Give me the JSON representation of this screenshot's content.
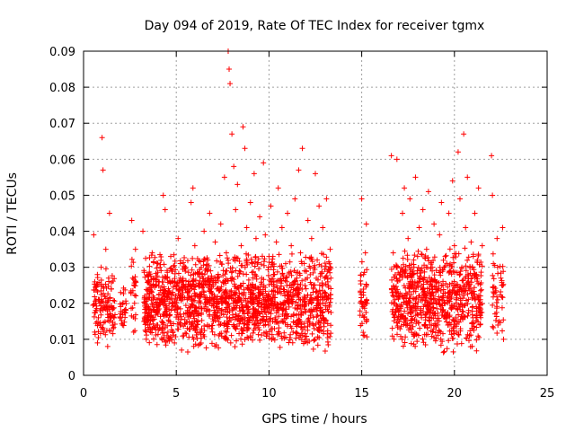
{
  "chart_data": {
    "type": "scatter",
    "title": "Day 094 of 2019, Rate Of TEC Index for receiver tgmx",
    "xlabel": "GPS time / hours",
    "ylabel": "ROTI / TECUs",
    "xlim": [
      0,
      25
    ],
    "ylim": [
      0,
      0.09
    ],
    "x_ticks": [
      0,
      5,
      10,
      15,
      20,
      25
    ],
    "x_tick_labels": [
      "0",
      "5",
      "10",
      "15",
      "20",
      "25"
    ],
    "y_ticks": [
      0,
      0.01,
      0.02,
      0.03,
      0.04,
      0.05,
      0.06,
      0.07,
      0.08,
      0.09
    ],
    "y_tick_labels": [
      "0",
      "0.01",
      "0.02",
      "0.03",
      "0.04",
      "0.05",
      "0.06",
      "0.07",
      "0.08",
      "0.09"
    ],
    "grid": true,
    "marker": "+",
    "color": "#ff0000",
    "series": [
      {
        "name": "ROTI",
        "points": [
          [
            0.55,
            0.039
          ],
          [
            0.6,
            0.012
          ],
          [
            0.65,
            0.018
          ],
          [
            0.7,
            0.025
          ],
          [
            0.75,
            0.009
          ],
          [
            0.8,
            0.016
          ],
          [
            0.85,
            0.021
          ],
          [
            0.9,
            0.014
          ],
          [
            0.95,
            0.03
          ],
          [
            1.0,
            0.066
          ],
          [
            1.05,
            0.057
          ],
          [
            1.1,
            0.012
          ],
          [
            1.15,
            0.022
          ],
          [
            1.2,
            0.035
          ],
          [
            1.25,
            0.019
          ],
          [
            1.3,
            0.008
          ],
          [
            1.35,
            0.027
          ],
          [
            1.4,
            0.045
          ],
          [
            1.45,
            0.016
          ],
          [
            1.5,
            0.024
          ],
          [
            1.6,
            0.013
          ],
          [
            2.0,
            0.023
          ],
          [
            2.1,
            0.014
          ],
          [
            2.2,
            0.018
          ],
          [
            2.6,
            0.043
          ],
          [
            2.65,
            0.027
          ],
          [
            2.7,
            0.012
          ],
          [
            2.75,
            0.02
          ],
          [
            2.8,
            0.035
          ],
          [
            3.2,
            0.04
          ],
          [
            3.3,
            0.022
          ],
          [
            3.4,
            0.016
          ],
          [
            3.5,
            0.028
          ],
          [
            3.6,
            0.012
          ],
          [
            3.7,
            0.034
          ],
          [
            3.8,
            0.019
          ],
          [
            3.9,
            0.025
          ],
          [
            4.0,
            0.031
          ],
          [
            4.1,
            0.013
          ],
          [
            4.2,
            0.021
          ],
          [
            4.3,
            0.05
          ],
          [
            4.4,
            0.046
          ],
          [
            4.5,
            0.027
          ],
          [
            4.6,
            0.015
          ],
          [
            4.7,
            0.033
          ],
          [
            4.8,
            0.019
          ],
          [
            4.9,
            0.009
          ],
          [
            5.0,
            0.024
          ],
          [
            5.1,
            0.038
          ],
          [
            5.2,
            0.014
          ],
          [
            5.3,
            0.026
          ],
          [
            5.4,
            0.011
          ],
          [
            5.5,
            0.03
          ],
          [
            5.6,
            0.018
          ],
          [
            5.7,
            0.022
          ],
          [
            5.8,
            0.048
          ],
          [
            5.9,
            0.052
          ],
          [
            6.0,
            0.036
          ],
          [
            6.1,
            0.017
          ],
          [
            6.2,
            0.025
          ],
          [
            6.3,
            0.012
          ],
          [
            6.4,
            0.028
          ],
          [
            6.5,
            0.04
          ],
          [
            6.6,
            0.019
          ],
          [
            6.7,
            0.032
          ],
          [
            6.8,
            0.045
          ],
          [
            6.9,
            0.023
          ],
          [
            7.0,
            0.015
          ],
          [
            7.1,
            0.037
          ],
          [
            7.2,
            0.027
          ],
          [
            7.3,
            0.011
          ],
          [
            7.4,
            0.042
          ],
          [
            7.5,
            0.02
          ],
          [
            7.6,
            0.055
          ],
          [
            7.7,
            0.034
          ],
          [
            7.8,
            0.09
          ],
          [
            7.85,
            0.085
          ],
          [
            7.9,
            0.081
          ],
          [
            8.0,
            0.067
          ],
          [
            8.1,
            0.058
          ],
          [
            8.2,
            0.046
          ],
          [
            8.3,
            0.053
          ],
          [
            8.4,
            0.029
          ],
          [
            8.5,
            0.036
          ],
          [
            8.6,
            0.069
          ],
          [
            8.7,
            0.063
          ],
          [
            8.8,
            0.041
          ],
          [
            8.9,
            0.025
          ],
          [
            9.0,
            0.048
          ],
          [
            9.1,
            0.031
          ],
          [
            9.2,
            0.056
          ],
          [
            9.3,
            0.038
          ],
          [
            9.4,
            0.017
          ],
          [
            9.5,
            0.044
          ],
          [
            9.6,
            0.027
          ],
          [
            9.7,
            0.059
          ],
          [
            9.8,
            0.039
          ],
          [
            9.9,
            0.021
          ],
          [
            10.0,
            0.033
          ],
          [
            10.1,
            0.047
          ],
          [
            10.2,
            0.015
          ],
          [
            10.3,
            0.028
          ],
          [
            10.4,
            0.037
          ],
          [
            10.5,
            0.052
          ],
          [
            10.6,
            0.024
          ],
          [
            10.7,
            0.041
          ],
          [
            10.8,
            0.018
          ],
          [
            10.9,
            0.031
          ],
          [
            11.0,
            0.045
          ],
          [
            11.1,
            0.022
          ],
          [
            11.2,
            0.036
          ],
          [
            11.3,
            0.012
          ],
          [
            11.4,
            0.049
          ],
          [
            11.5,
            0.027
          ],
          [
            11.6,
            0.057
          ],
          [
            11.7,
            0.034
          ],
          [
            11.8,
            0.063
          ],
          [
            11.9,
            0.019
          ],
          [
            12.0,
            0.029
          ],
          [
            12.1,
            0.043
          ],
          [
            12.2,
            0.014
          ],
          [
            12.3,
            0.038
          ],
          [
            12.4,
            0.025
          ],
          [
            12.5,
            0.056
          ],
          [
            12.6,
            0.032
          ],
          [
            12.7,
            0.047
          ],
          [
            12.8,
            0.018
          ],
          [
            12.9,
            0.041
          ],
          [
            13.0,
            0.027
          ],
          [
            13.1,
            0.049
          ],
          [
            13.2,
            0.022
          ],
          [
            13.3,
            0.035
          ],
          [
            15.0,
            0.049
          ],
          [
            15.05,
            0.019
          ],
          [
            15.1,
            0.028
          ],
          [
            15.15,
            0.011
          ],
          [
            15.2,
            0.034
          ],
          [
            15.25,
            0.042
          ],
          [
            16.6,
            0.061
          ],
          [
            16.7,
            0.034
          ],
          [
            16.8,
            0.021
          ],
          [
            16.9,
            0.06
          ],
          [
            17.0,
            0.015
          ],
          [
            17.1,
            0.028
          ],
          [
            17.2,
            0.045
          ],
          [
            17.3,
            0.052
          ],
          [
            17.4,
            0.02
          ],
          [
            17.5,
            0.038
          ],
          [
            17.6,
            0.049
          ],
          [
            17.7,
            0.026
          ],
          [
            17.8,
            0.032
          ],
          [
            17.9,
            0.055
          ],
          [
            18.0,
            0.017
          ],
          [
            18.1,
            0.041
          ],
          [
            18.2,
            0.029
          ],
          [
            18.3,
            0.046
          ],
          [
            18.4,
            0.023
          ],
          [
            18.5,
            0.035
          ],
          [
            18.6,
            0.051
          ],
          [
            18.7,
            0.019
          ],
          [
            18.8,
            0.03
          ],
          [
            18.9,
            0.042
          ],
          [
            19.0,
            0.026
          ],
          [
            19.1,
            0.014
          ],
          [
            19.2,
            0.039
          ],
          [
            19.3,
            0.048
          ],
          [
            19.4,
            0.022
          ],
          [
            19.5,
            0.033
          ],
          [
            19.6,
            0.017
          ],
          [
            19.7,
            0.045
          ],
          [
            19.8,
            0.029
          ],
          [
            19.9,
            0.054
          ],
          [
            20.0,
            0.036
          ],
          [
            20.1,
            0.021
          ],
          [
            20.2,
            0.062
          ],
          [
            20.3,
            0.049
          ],
          [
            20.4,
            0.03
          ],
          [
            20.5,
            0.067
          ],
          [
            20.6,
            0.041
          ],
          [
            20.7,
            0.055
          ],
          [
            20.8,
            0.024
          ],
          [
            20.9,
            0.037
          ],
          [
            21.0,
            0.016
          ],
          [
            21.1,
            0.045
          ],
          [
            21.2,
            0.028
          ],
          [
            21.3,
            0.052
          ],
          [
            21.4,
            0.021
          ],
          [
            21.5,
            0.036
          ],
          [
            22.0,
            0.061
          ],
          [
            22.05,
            0.05
          ],
          [
            22.1,
            0.031
          ],
          [
            22.2,
            0.023
          ],
          [
            22.3,
            0.038
          ],
          [
            22.4,
            0.015
          ],
          [
            22.5,
            0.027
          ],
          [
            22.6,
            0.041
          ],
          [
            22.65,
            0.01
          ]
        ]
      }
    ],
    "dense_segments": [
      {
        "x": [
          0.5,
          1.7
        ],
        "low": 0.008,
        "high": 0.03,
        "count": 120
      },
      {
        "x": [
          1.95,
          2.3
        ],
        "low": 0.011,
        "high": 0.026,
        "count": 25
      },
      {
        "x": [
          2.55,
          2.85
        ],
        "low": 0.01,
        "high": 0.036,
        "count": 25
      },
      {
        "x": [
          3.25,
          13.35
        ],
        "low": 0.006,
        "high": 0.035,
        "count": 1600
      },
      {
        "x": [
          14.9,
          15.3
        ],
        "low": 0.008,
        "high": 0.032,
        "count": 45
      },
      {
        "x": [
          16.6,
          21.5
        ],
        "low": 0.006,
        "high": 0.036,
        "count": 750
      },
      {
        "x": [
          22.05,
          22.65
        ],
        "low": 0.01,
        "high": 0.034,
        "count": 45
      }
    ]
  }
}
